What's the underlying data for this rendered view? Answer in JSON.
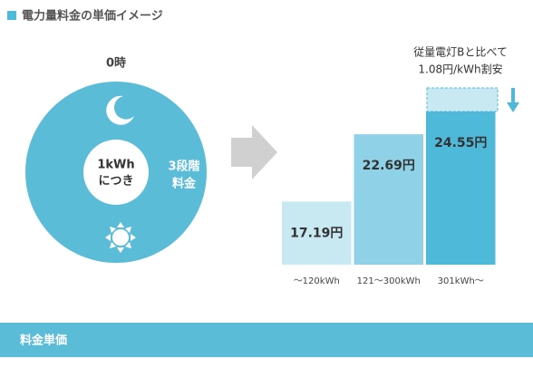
{
  "header": {
    "title": "電力量料金の単価イメージ"
  },
  "clock": {
    "time": "0時",
    "center_line1": "1kWh",
    "center_line2": "につき",
    "side_line1": "3段階",
    "side_line2": "料金"
  },
  "chart_data": {
    "type": "bar",
    "categories": [
      "～120kWh",
      "121～300kWh",
      "301kWh～"
    ],
    "values": [
      17.19,
      22.69,
      24.55
    ],
    "value_labels": [
      "17.19円",
      "22.69円",
      "24.55円"
    ],
    "colors": [
      "#c8e8f2",
      "#8fd1e6",
      "#4fb9d9"
    ],
    "annotation_line1": "従量電灯Bと比べて",
    "annotation_line2": "1.08円/kWh割安"
  },
  "footer": {
    "title": "料金単価"
  }
}
